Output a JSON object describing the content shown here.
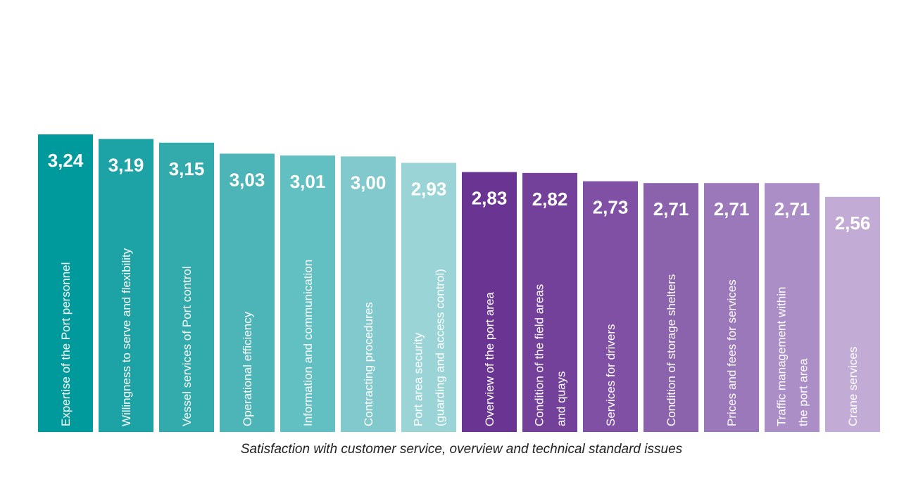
{
  "chart_data": {
    "type": "bar",
    "xlabel": "Satisfaction with customer service, overview and technical standard issues",
    "ylabel": "",
    "ylim": [
      0,
      3.24
    ],
    "grid": false,
    "categories": [
      [
        "Expertise of the Port personnel"
      ],
      [
        "Willingness to serve and flexibility"
      ],
      [
        "Vessel services of Port control"
      ],
      [
        "Operational efficiency"
      ],
      [
        "Information and communication"
      ],
      [
        "Contracting procedures"
      ],
      [
        "Port area security",
        "(guarding and access control)"
      ],
      [
        "Overview of the port area"
      ],
      [
        "Condition of the field areas",
        "and quays"
      ],
      [
        "Services for drivers"
      ],
      [
        "Condition of storage shelters"
      ],
      [
        "Prices and fees for services"
      ],
      [
        "Traffic management within",
        "the port area"
      ],
      [
        "Crane services"
      ]
    ],
    "values": [
      3.24,
      3.19,
      3.15,
      3.03,
      3.01,
      3.0,
      2.93,
      2.83,
      2.82,
      2.73,
      2.71,
      2.71,
      2.71,
      2.56
    ],
    "value_labels": [
      "3,24",
      "3,19",
      "3,15",
      "3,03",
      "3,01",
      "3,00",
      "2,93",
      "2,83",
      "2,82",
      "2,73",
      "2,71",
      "2,71",
      "2,71",
      "2,56"
    ],
    "colors": [
      "#009a9c",
      "#1da3a5",
      "#33abad",
      "#4db5b8",
      "#62bfc2",
      "#82c9cd",
      "#9bd4d7",
      "#6a3592",
      "#74419a",
      "#7f50a3",
      "#8b63ad",
      "#9b78b9",
      "#ab8ec6",
      "#c2abd5"
    ]
  }
}
